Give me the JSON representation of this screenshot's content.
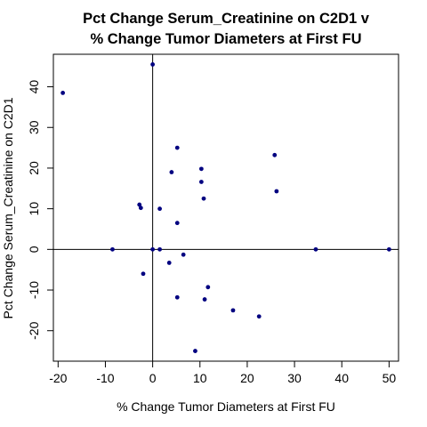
{
  "chart_data": {
    "type": "scatter",
    "title": [
      "Pct Change Serum_Creatinine on C2D1 v",
      "% Change Tumor Diameters at First FU"
    ],
    "xlabel": "% Change Tumor Diameters at First FU",
    "ylabel": "Pct Change Serum_Creatinine on C2D1",
    "xlim": [
      -21,
      52
    ],
    "ylim": [
      -27.5,
      48
    ],
    "xticks": [
      -20,
      -10,
      0,
      10,
      20,
      30,
      40,
      50
    ],
    "yticks": [
      -20,
      -10,
      0,
      10,
      20,
      30,
      40
    ],
    "xticklabels": [
      "-20",
      "-10",
      "0",
      "10",
      "20",
      "30",
      "40",
      "50"
    ],
    "yticklabels": [
      "-20",
      "-10",
      "0",
      "10",
      "20",
      "30",
      "40"
    ],
    "reference_lines": {
      "x": 0,
      "y": 0
    },
    "grid": false,
    "point_color": "#000080",
    "points": [
      {
        "x": -19,
        "y": 38.5
      },
      {
        "x": 0,
        "y": 45.5
      },
      {
        "x": -8.5,
        "y": 0
      },
      {
        "x": -2.8,
        "y": 11
      },
      {
        "x": -2.5,
        "y": 10.2
      },
      {
        "x": -2,
        "y": -6
      },
      {
        "x": 0,
        "y": 0
      },
      {
        "x": 1.5,
        "y": 10
      },
      {
        "x": 1.5,
        "y": 0
      },
      {
        "x": 3.5,
        "y": -3.3
      },
      {
        "x": 4,
        "y": 19
      },
      {
        "x": 5.2,
        "y": 25
      },
      {
        "x": 5.2,
        "y": 6.5
      },
      {
        "x": 5.2,
        "y": -11.8
      },
      {
        "x": 6.5,
        "y": -1.3
      },
      {
        "x": 9,
        "y": -25
      },
      {
        "x": 10.3,
        "y": 19.8
      },
      {
        "x": 10.3,
        "y": 16.6
      },
      {
        "x": 10.8,
        "y": 12.5
      },
      {
        "x": 11,
        "y": -12.3
      },
      {
        "x": 11.7,
        "y": -9.3
      },
      {
        "x": 17,
        "y": -15
      },
      {
        "x": 22.5,
        "y": -16.5
      },
      {
        "x": 25.8,
        "y": 23.2
      },
      {
        "x": 26.2,
        "y": 14.3
      },
      {
        "x": 34.5,
        "y": 0
      },
      {
        "x": 50,
        "y": 0
      }
    ]
  }
}
